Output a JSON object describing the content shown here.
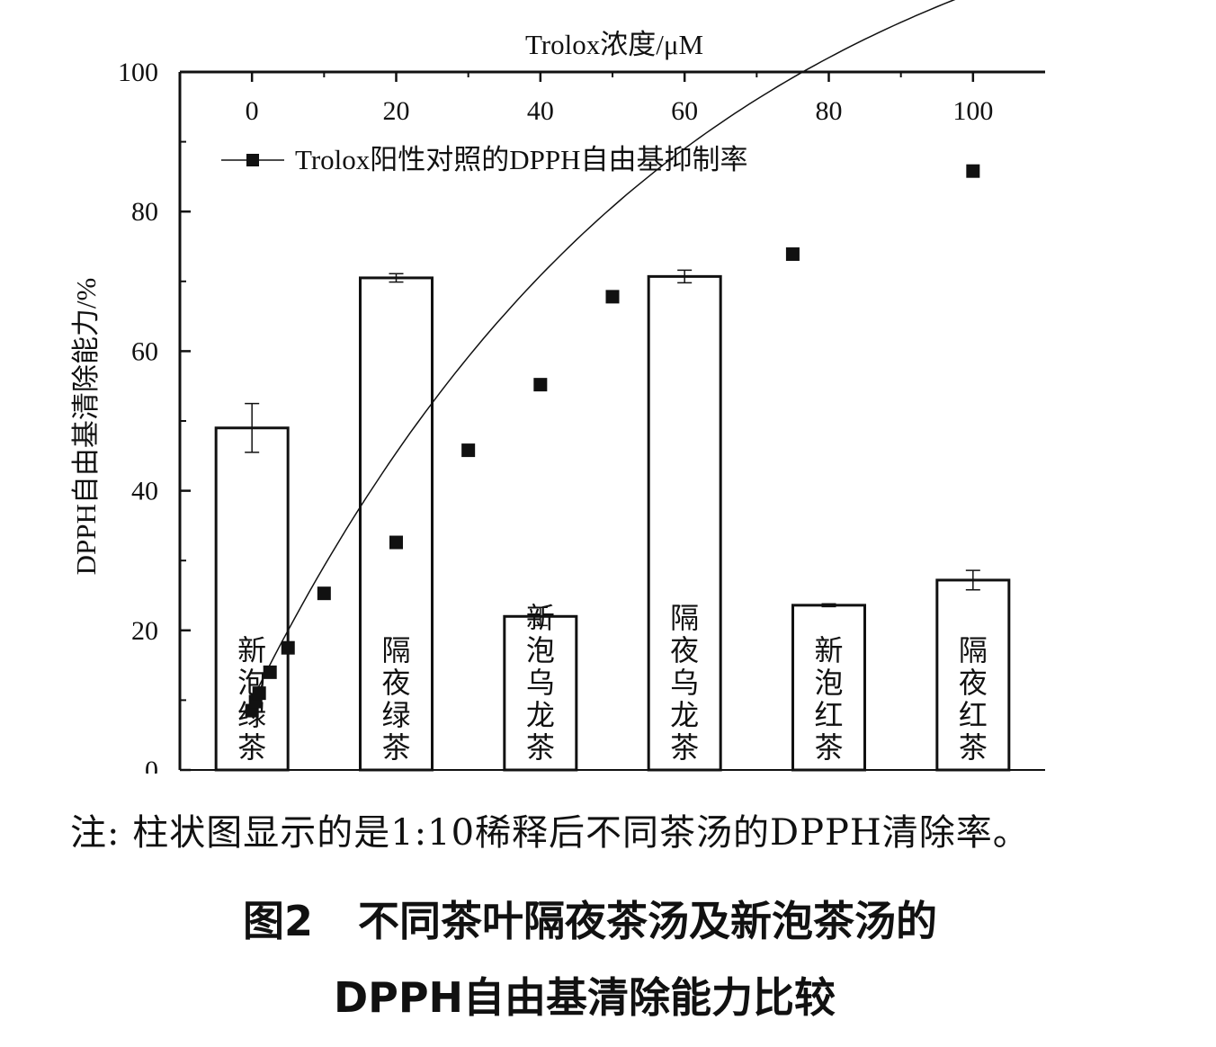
{
  "chart_data": {
    "type": "bar+scatter",
    "x_top_axis": {
      "label": "Trolox浓度/μM",
      "ticks": [
        0,
        20,
        40,
        60,
        80,
        100
      ],
      "range": [
        -10,
        110
      ]
    },
    "y_axis": {
      "label": "DPPH自由基清除能力/%",
      "ticks": [
        0,
        20,
        40,
        60,
        80,
        100
      ],
      "range": [
        0,
        100
      ]
    },
    "bars": [
      {
        "label": "新泡绿茶",
        "label_lines": [
          "新",
          "泡",
          "绿",
          "茶"
        ],
        "value": 49,
        "error": 3.5
      },
      {
        "label": "隔夜绿茶",
        "label_lines": [
          "隔",
          "夜",
          "绿",
          "茶"
        ],
        "value": 70.5,
        "error": 0.6
      },
      {
        "label": "新泡乌龙茶",
        "label_lines": [
          "新",
          "泡",
          "乌",
          "龙",
          "茶"
        ],
        "value": 22,
        "error": 1.3
      },
      {
        "label": "隔夜乌龙茶",
        "label_lines": [
          "隔",
          "夜",
          "乌",
          "龙",
          "茶"
        ],
        "value": 70.7,
        "error": 0.9
      },
      {
        "label": "新泡红茶",
        "label_lines": [
          "新",
          "泡",
          "红",
          "茶"
        ],
        "value": 23.6,
        "error": 0.2
      },
      {
        "label": "隔夜红茶",
        "label_lines": [
          "隔",
          "夜",
          "红",
          "茶"
        ],
        "value": 27.2,
        "error": 1.4
      }
    ],
    "series": [
      {
        "name": "Trolox阳性对照的DPPH自由基抑制率",
        "marker": "square",
        "points": [
          {
            "x": 0,
            "y": 8.5
          },
          {
            "x": 0.5,
            "y": 9.8
          },
          {
            "x": 1,
            "y": 11
          },
          {
            "x": 2.5,
            "y": 14
          },
          {
            "x": 5,
            "y": 17.5
          },
          {
            "x": 10,
            "y": 25.3
          },
          {
            "x": 20,
            "y": 32.6
          },
          {
            "x": 30,
            "y": 45.8
          },
          {
            "x": 40,
            "y": 55.2
          },
          {
            "x": 50,
            "y": 67.8
          },
          {
            "x": 75,
            "y": 73.9
          },
          {
            "x": 100,
            "y": 85.8
          }
        ],
        "fit_curve": true
      }
    ],
    "legend_position": "top-left"
  },
  "note": "注: 柱状图显示的是1:10稀释后不同茶汤的DPPH清除率。",
  "caption": {
    "figure_no": "图2",
    "line1": "不同茶叶隔夜茶汤及新泡茶汤的",
    "line2": "DPPH自由基清除能力比较"
  },
  "colors": {
    "ink": "#111111",
    "bar_fill": "#ffffff"
  }
}
